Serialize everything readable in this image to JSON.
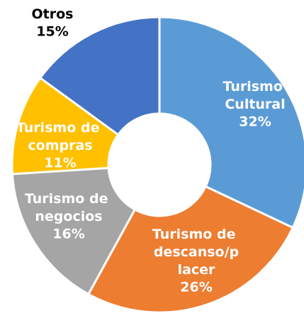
{
  "chart_data": {
    "type": "donut",
    "categories": [
      "Turismo Cultural",
      "Turismo de descanso/placer",
      "Turismo de negocios",
      "Turismo de compras",
      "Otros"
    ],
    "values": [
      32,
      26,
      16,
      11,
      15
    ],
    "value_labels": [
      "32%",
      "26%",
      "16%",
      "11%",
      "15%"
    ],
    "colors": [
      "#5b9bd5",
      "#ed7d31",
      "#a5a5a5",
      "#ffc000",
      "#4472c4"
    ]
  }
}
